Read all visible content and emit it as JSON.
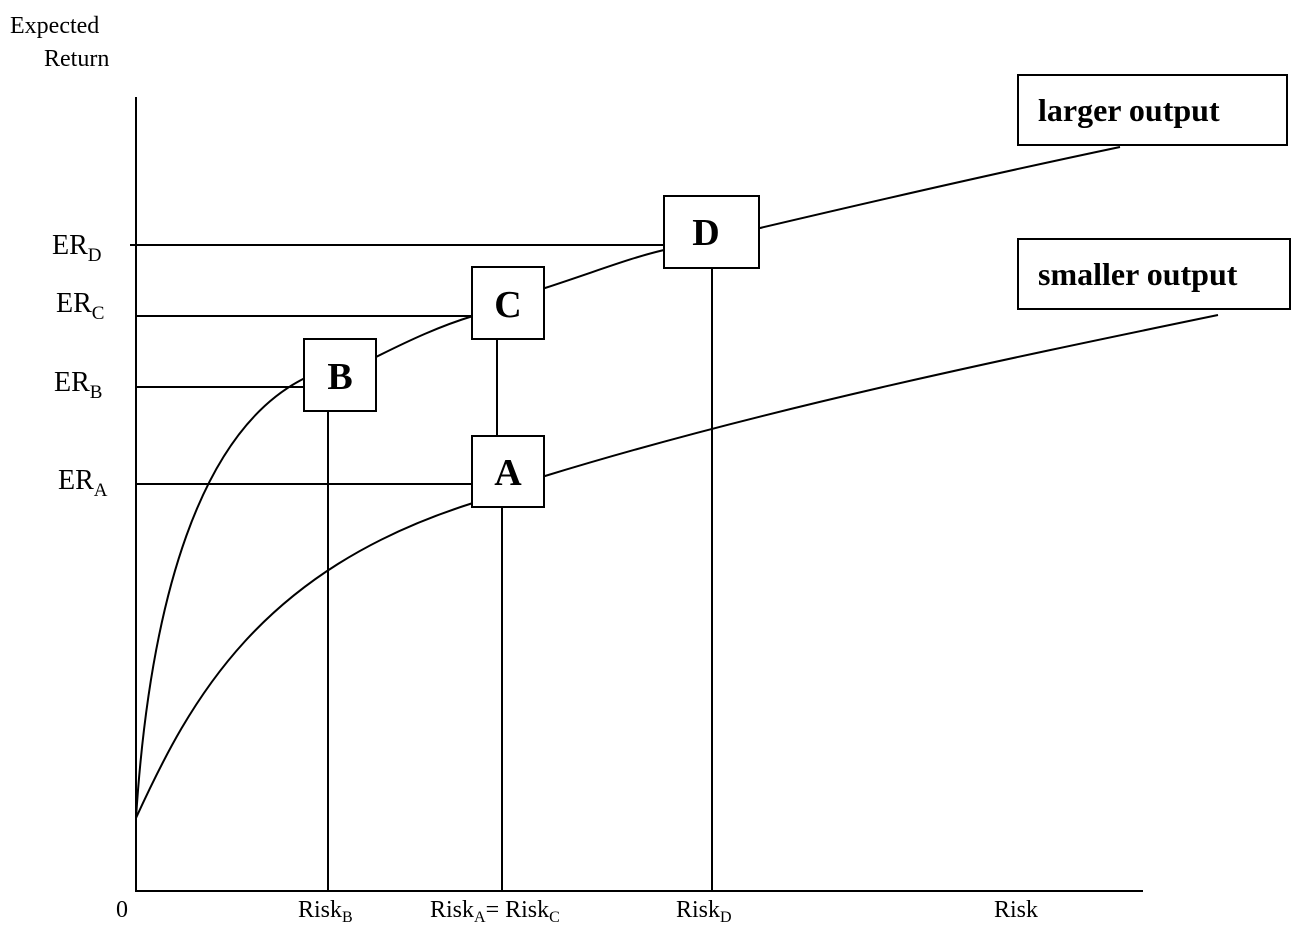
{
  "y_axis_label": {
    "line1": "Expected",
    "line2": "Return"
  },
  "x_axis_label": "Risk",
  "origin_label": "0",
  "curves": [
    {
      "id": "larger",
      "label": "larger output"
    },
    {
      "id": "smaller",
      "label": "smaller output"
    }
  ],
  "points": [
    {
      "id": "A",
      "label": "A"
    },
    {
      "id": "B",
      "label": "B"
    },
    {
      "id": "C",
      "label": "C"
    },
    {
      "id": "D",
      "label": "D"
    }
  ],
  "y_ticks": [
    {
      "main": "ER",
      "sub": "D"
    },
    {
      "main": "ER",
      "sub": "C"
    },
    {
      "main": "ER",
      "sub": "B"
    },
    {
      "main": "ER",
      "sub": "A"
    }
  ],
  "x_ticks": {
    "risk_b": {
      "main": "Risk",
      "sub": "B"
    },
    "risk_ac": {
      "main1": "Risk",
      "sub1": "A",
      "eq": "= ",
      "main2": "Risk",
      "sub2": "C"
    },
    "risk_d": {
      "main": "Risk",
      "sub": "D"
    }
  }
}
